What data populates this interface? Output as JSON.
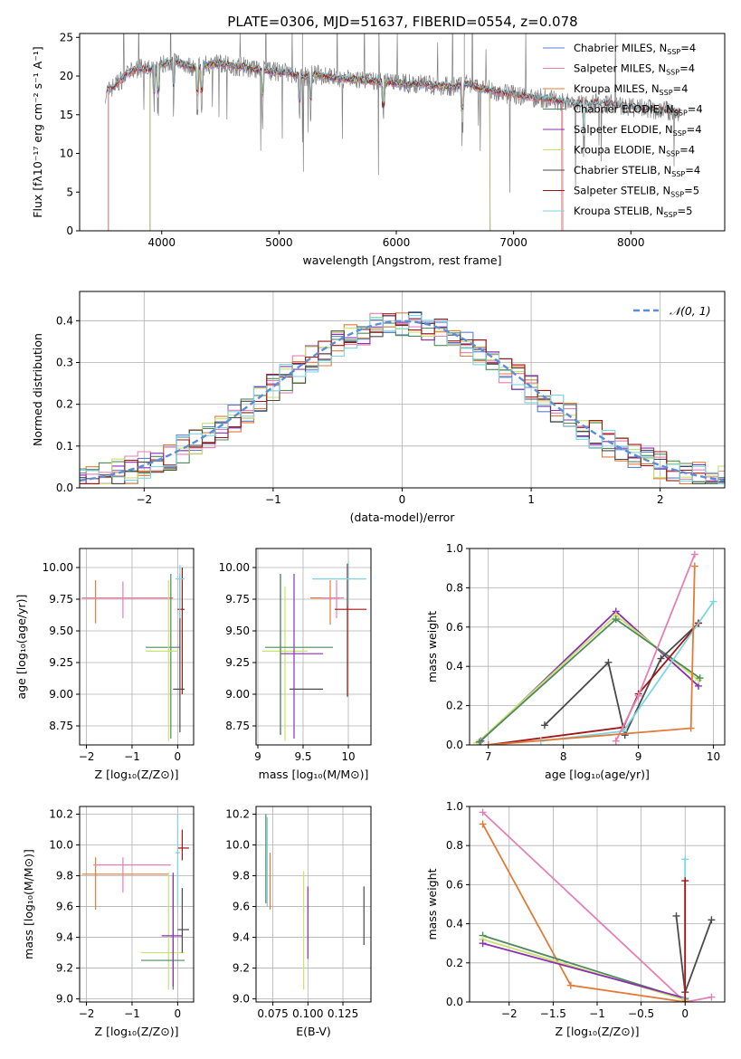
{
  "colors": {
    "Chabrier MILES": "#5b7fd3",
    "Salpeter MILES": "#e57fb5",
    "Kroupa MILES": "#e07b39",
    "Chabrier ELODIE": "#4f8a5e",
    "Salpeter ELODIE": "#8b2fb3",
    "Kroupa ELODIE": "#c9e26b",
    "Chabrier STELIB": "#4a4a4a",
    "Salpeter STELIB": "#a31515",
    "Kroupa STELIB": "#7ad6e0",
    "gaussian": "#5b8ed8"
  },
  "chart_data": [
    {
      "id": "spectrum",
      "type": "line",
      "title": "PLATE=0306, MJD=51637, FIBERID=0554, z=0.078",
      "xlabel": "wavelength [Angstrom, rest frame]",
      "ylabel": "Flux [fλ10⁻¹⁷ erg cm⁻² s⁻¹ A⁻¹]",
      "xlim": [
        3300,
        8800
      ],
      "ylim": [
        0,
        25.5
      ],
      "xticks": [
        4000,
        5000,
        6000,
        7000,
        8000
      ],
      "yticks": [
        0,
        5,
        10,
        15,
        20,
        25
      ],
      "legend_position": "top-right",
      "legend": [
        {
          "name": "Chabrier MILES, N",
          "sub": "SSP",
          "tail": "=4",
          "color_key": "Chabrier MILES"
        },
        {
          "name": "Salpeter MILES, N",
          "sub": "SSP",
          "tail": "=4",
          "color_key": "Salpeter MILES"
        },
        {
          "name": "Kroupa MILES, N",
          "sub": "SSP",
          "tail": "=4",
          "color_key": "Kroupa MILES"
        },
        {
          "name": "Chabrier ELODIE, N",
          "sub": "SSP",
          "tail": "=4",
          "color_key": "Chabrier ELODIE"
        },
        {
          "name": "Salpeter ELODIE, N",
          "sub": "SSP",
          "tail": "=4",
          "color_key": "Salpeter ELODIE"
        },
        {
          "name": "Kroupa ELODIE, N",
          "sub": "SSP",
          "tail": "=4",
          "color_key": "Kroupa ELODIE"
        },
        {
          "name": "Chabrier STELIB, N",
          "sub": "SSP",
          "tail": "=4",
          "color_key": "Chabrier STELIB"
        },
        {
          "name": "Salpeter STELIB, N",
          "sub": "SSP",
          "tail": "=5",
          "color_key": "Salpeter STELIB"
        },
        {
          "name": "Kroupa STELIB, N",
          "sub": "SSP",
          "tail": "=5",
          "color_key": "Kroupa STELIB"
        }
      ],
      "continuum": [
        [
          3500,
          17.5
        ],
        [
          3600,
          18.8
        ],
        [
          3700,
          20.2
        ],
        [
          3800,
          21.0
        ],
        [
          3900,
          20.8
        ],
        [
          4000,
          21.5
        ],
        [
          4100,
          22.0
        ],
        [
          4200,
          21.5
        ],
        [
          4300,
          21.0
        ],
        [
          4400,
          21.5
        ],
        [
          4500,
          21.6
        ],
        [
          4600,
          21.3
        ],
        [
          4700,
          21.2
        ],
        [
          4800,
          20.8
        ],
        [
          4900,
          20.7
        ],
        [
          5000,
          20.5
        ],
        [
          5100,
          20.4
        ],
        [
          5200,
          19.8
        ],
        [
          5300,
          20.2
        ],
        [
          5400,
          20.0
        ],
        [
          5500,
          19.7
        ],
        [
          5600,
          19.6
        ],
        [
          5700,
          19.5
        ],
        [
          5800,
          19.3
        ],
        [
          5900,
          19.2
        ],
        [
          6000,
          19.1
        ],
        [
          6100,
          19.0
        ],
        [
          6200,
          19.0
        ],
        [
          6300,
          18.8
        ],
        [
          6400,
          18.7
        ],
        [
          6500,
          18.6
        ],
        [
          6600,
          19.0
        ],
        [
          6700,
          18.5
        ],
        [
          6800,
          18.2
        ],
        [
          6900,
          17.8
        ],
        [
          7000,
          17.6
        ],
        [
          7100,
          17.4
        ],
        [
          7200,
          17.2
        ],
        [
          7300,
          17.0
        ],
        [
          7400,
          16.8
        ],
        [
          7500,
          16.5
        ],
        [
          7600,
          16.3
        ],
        [
          7700,
          16.5
        ],
        [
          7800,
          16.4
        ],
        [
          7900,
          16.2
        ],
        [
          8000,
          16.0
        ],
        [
          8100,
          15.8
        ],
        [
          8200,
          15.6
        ],
        [
          8300,
          15.5
        ],
        [
          8400,
          15.4
        ]
      ]
    },
    {
      "id": "residuals",
      "type": "step",
      "xlabel": "(data-model)/error",
      "ylabel": "Normed distribution",
      "xlim": [
        -2.5,
        2.5
      ],
      "ylim": [
        0,
        0.47
      ],
      "xticks": [
        -2,
        -1,
        0,
        1,
        2
      ],
      "yticks": [
        0.0,
        0.1,
        0.2,
        0.3,
        0.4
      ],
      "legend": {
        "label": "𝒩(0, 1)",
        "color_key": "gaussian",
        "position": "top-right"
      }
    },
    {
      "id": "age_vs_Z",
      "type": "errorbar",
      "xlabel": "Z [log₁₀(Z/Z⊙)]",
      "ylabel": "age  [log₁₀(age/yr)]",
      "xlim": [
        -2.15,
        0.35
      ],
      "ylim": [
        8.6,
        10.15
      ],
      "xticks": [
        -2,
        -1,
        0
      ],
      "yticks": [
        8.75,
        9.0,
        9.25,
        9.5,
        9.75,
        10.0
      ],
      "points": [
        {
          "color_key": "Kroupa MILES",
          "x": -1.8,
          "y": 9.76,
          "x0": -2.1,
          "x1": -0.1,
          "y0": 9.56,
          "y1": 9.9
        },
        {
          "color_key": "Salpeter MILES",
          "x": -1.2,
          "y": 9.76,
          "x0": -2.1,
          "x1": -0.15,
          "y0": 9.6,
          "y1": 9.89
        },
        {
          "color_key": "Chabrier ELODIE",
          "x": -0.15,
          "y": 9.37,
          "x0": -0.7,
          "x1": 0.05,
          "y0": 8.65,
          "y1": 9.95
        },
        {
          "color_key": "Kroupa ELODIE",
          "x": -0.2,
          "y": 9.34,
          "x0": -0.7,
          "x1": 0.0,
          "y0": 8.63,
          "y1": 9.9
        },
        {
          "color_key": "Chabrier STELIB",
          "x": 0.05,
          "y": 9.04,
          "x0": -0.1,
          "x1": 0.15,
          "y0": 8.7,
          "y1": 9.95
        },
        {
          "color_key": "Salpeter STELIB",
          "x": 0.1,
          "y": 9.67,
          "x0": 0.0,
          "x1": 0.15,
          "y0": 9.0,
          "y1": 10.0
        },
        {
          "color_key": "Kroupa STELIB",
          "x": 0.05,
          "y": 9.91,
          "x0": -0.05,
          "x1": 0.15,
          "y0": 9.6,
          "y1": 10.02
        }
      ]
    },
    {
      "id": "age_vs_mass",
      "type": "errorbar",
      "xlabel": "mass [log₁₀(M/M⊙)]",
      "xlim": [
        8.98,
        10.25
      ],
      "ylim": [
        8.6,
        10.15
      ],
      "xticks": [
        9.0,
        9.5,
        10.0
      ],
      "yticks": [
        8.75,
        9.0,
        9.25,
        9.5,
        9.75,
        10.0
      ],
      "points": [
        {
          "color_key": "Chabrier STELIB",
          "x": 9.25,
          "y": 9.04,
          "x0": 9.35,
          "x1": 9.72,
          "y0": 8.68,
          "y1": 9.95
        },
        {
          "color_key": "Kroupa ELODIE",
          "x": 9.3,
          "y": 9.34,
          "x0": 9.05,
          "x1": 9.55,
          "y0": 8.63,
          "y1": 9.85
        },
        {
          "color_key": "Salpeter ELODIE",
          "x": 9.4,
          "y": 9.32,
          "x0": 9.25,
          "x1": 9.72,
          "y0": 8.65,
          "y1": 9.95
        },
        {
          "color_key": "Chabrier ELODIE",
          "x": 9.25,
          "y": 9.37,
          "x0": 9.08,
          "x1": 9.83,
          "y0": 8.7,
          "y1": 9.95
        },
        {
          "color_key": "Kroupa MILES",
          "x": 9.8,
          "y": 9.76,
          "x0": 9.58,
          "x1": 9.9,
          "y0": 9.55,
          "y1": 9.9
        },
        {
          "color_key": "Salpeter MILES",
          "x": 9.87,
          "y": 9.76,
          "x0": 9.7,
          "x1": 9.95,
          "y0": 9.6,
          "y1": 9.9
        },
        {
          "color_key": "Salpeter STELIB",
          "x": 9.99,
          "y": 9.67,
          "x0": 9.85,
          "x1": 10.2,
          "y0": 8.98,
          "y1": 10.03
        },
        {
          "color_key": "Kroupa STELIB",
          "x": 10.0,
          "y": 9.91,
          "x0": 9.6,
          "x1": 10.2,
          "y0": 9.7,
          "y1": 10.05
        }
      ]
    },
    {
      "id": "mass_weight_vs_age",
      "type": "line",
      "xlabel": "age  [log₁₀(age/yr)]",
      "ylabel": "mass weight",
      "xlim": [
        6.75,
        10.15
      ],
      "ylim": [
        0,
        1.0
      ],
      "xticks": [
        7,
        8,
        9,
        10
      ],
      "yticks": [
        0.0,
        0.2,
        0.4,
        0.6,
        0.8,
        1.0
      ],
      "series": [
        {
          "color_key": "Salpeter ELODIE",
          "x": [
            6.9,
            8.7,
            9.8
          ],
          "y": [
            0.02,
            0.68,
            0.3
          ]
        },
        {
          "color_key": "Kroupa ELODIE",
          "x": [
            6.85,
            8.7,
            9.8
          ],
          "y": [
            0.01,
            0.66,
            0.33
          ]
        },
        {
          "color_key": "Chabrier ELODIE",
          "x": [
            6.88,
            8.7,
            9.82
          ],
          "y": [
            0.015,
            0.64,
            0.34
          ]
        },
        {
          "color_key": "Chabrier STELIB",
          "x": [
            7.75,
            8.6,
            8.82,
            9.3,
            9.8
          ],
          "y": [
            0.1,
            0.42,
            0.05,
            0.44,
            0.62
          ]
        },
        {
          "color_key": "Salpeter STELIB",
          "x": [
            7.0,
            8.8,
            9.0,
            9.8
          ],
          "y": [
            0.0,
            0.09,
            0.26,
            0.62
          ]
        },
        {
          "color_key": "Kroupa STELIB",
          "x": [
            7.7,
            8.8,
            10.0
          ],
          "y": [
            0.02,
            0.07,
            0.73
          ]
        },
        {
          "color_key": "Salpeter MILES",
          "x": [
            8.7,
            9.0,
            9.75
          ],
          "y": [
            0.02,
            0.25,
            0.97
          ]
        },
        {
          "color_key": "Kroupa MILES",
          "x": [
            7.0,
            9.7,
            9.75
          ],
          "y": [
            0.0,
            0.085,
            0.91
          ]
        }
      ]
    },
    {
      "id": "mass_vs_Z",
      "type": "errorbar",
      "xlabel": "Z [log₁₀(Z/Z⊙)]",
      "ylabel": "mass [log₁₀(M/M⊙)]",
      "xlim": [
        -2.15,
        0.35
      ],
      "ylim": [
        8.98,
        10.25
      ],
      "xticks": [
        -2,
        -1,
        0
      ],
      "yticks": [
        9.0,
        9.2,
        9.4,
        9.6,
        9.8,
        10.0,
        10.2
      ],
      "points": [
        {
          "color_key": "Kroupa MILES",
          "x": -1.8,
          "y": 9.81,
          "x0": -2.1,
          "x1": -0.2,
          "y0": 9.58,
          "y1": 9.92
        },
        {
          "color_key": "Salpeter MILES",
          "x": -1.2,
          "y": 9.87,
          "x0": -1.85,
          "x1": -0.15,
          "y0": 9.69,
          "y1": 9.92
        },
        {
          "color_key": "Kroupa ELODIE",
          "x": -0.2,
          "y": 9.3,
          "x0": -0.8,
          "x1": 0.15,
          "y0": 9.06,
          "y1": 9.82
        },
        {
          "color_key": "Chabrier ELODIE",
          "x": -0.1,
          "y": 9.25,
          "x0": -0.8,
          "x1": 0.15,
          "y0": 9.06,
          "y1": 9.8
        },
        {
          "color_key": "Salpeter ELODIE",
          "x": -0.1,
          "y": 9.41,
          "x0": -0.35,
          "x1": 0.1,
          "y0": 9.08,
          "y1": 9.82
        },
        {
          "color_key": "Chabrier STELIB",
          "x": 0.1,
          "y": 9.45,
          "x0": 0.0,
          "x1": 0.25,
          "y0": 9.3,
          "y1": 9.72
        },
        {
          "color_key": "Salpeter STELIB",
          "x": 0.1,
          "y": 9.98,
          "x0": 0.0,
          "x1": 0.25,
          "y0": 9.9,
          "y1": 10.1
        },
        {
          "color_key": "Kroupa STELIB",
          "x": 0.0,
          "y": 9.95,
          "x0": -0.05,
          "x1": 0.05,
          "y0": 9.6,
          "y1": 10.2
        }
      ]
    },
    {
      "id": "mass_vs_EBV",
      "type": "errorbar",
      "xlabel": "E(B-V)",
      "xlim": [
        0.063,
        0.145
      ],
      "ylim": [
        8.98,
        10.25
      ],
      "xticks": [
        0.075,
        0.1,
        0.125
      ],
      "xticklabels": [
        "0.075",
        "0.100",
        "0.125"
      ],
      "yticks": [
        9.0,
        9.2,
        9.4,
        9.6,
        9.8,
        10.0,
        10.2
      ],
      "points": [
        {
          "color_key": "Chabrier ELODIE",
          "x": 0.07,
          "y": 9.9,
          "y0": 9.62,
          "y1": 10.2
        },
        {
          "color_key": "Kroupa STELIB",
          "x": 0.071,
          "y": 9.88,
          "y0": 9.6,
          "y1": 10.18
        },
        {
          "color_key": "Kroupa MILES",
          "x": 0.073,
          "y": 9.75,
          "y0": 9.58,
          "y1": 9.95
        },
        {
          "color_key": "Kroupa ELODIE",
          "x": 0.097,
          "y": 9.45,
          "y0": 9.06,
          "y1": 9.83
        },
        {
          "color_key": "Salpeter ELODIE",
          "x": 0.1,
          "y": 9.5,
          "y0": 9.26,
          "y1": 9.73
        },
        {
          "color_key": "Chabrier STELIB",
          "x": 0.14,
          "y": 9.55,
          "y0": 9.35,
          "y1": 9.73
        }
      ]
    },
    {
      "id": "mass_weight_vs_Z",
      "type": "line",
      "xlabel": "Z [log₁₀(Z/Z⊙)]",
      "ylabel": "mass weight",
      "xlim": [
        -2.45,
        0.45
      ],
      "ylim": [
        0,
        1.0
      ],
      "xticks": [
        -2.0,
        -1.5,
        -1.0,
        -0.5,
        0.0
      ],
      "yticks": [
        0.0,
        0.2,
        0.4,
        0.6,
        0.8,
        1.0
      ],
      "series": [
        {
          "color_key": "Salpeter MILES",
          "x": [
            -2.3,
            0.0,
            0.3
          ],
          "y": [
            0.97,
            0.0,
            0.025
          ]
        },
        {
          "color_key": "Kroupa MILES",
          "x": [
            -2.3,
            -1.3,
            0.0
          ],
          "y": [
            0.91,
            0.085,
            0.0
          ]
        },
        {
          "color_key": "Chabrier ELODIE",
          "x": [
            -2.3,
            0.0
          ],
          "y": [
            0.34,
            0.015
          ]
        },
        {
          "color_key": "Kroupa ELODIE",
          "x": [
            -2.3,
            0.0
          ],
          "y": [
            0.32,
            0.01
          ]
        },
        {
          "color_key": "Salpeter ELODIE",
          "x": [
            -2.3,
            0.0
          ],
          "y": [
            0.3,
            0.02
          ]
        },
        {
          "color_key": "Chabrier STELIB",
          "x": [
            -0.1,
            0.0,
            0.3
          ],
          "y": [
            0.44,
            0.05,
            0.42
          ]
        },
        {
          "color_key": "Kroupa STELIB",
          "x": [
            0.0,
            0.0
          ],
          "y": [
            0.02,
            0.73
          ]
        },
        {
          "color_key": "Salpeter STELIB",
          "x": [
            0.0,
            0.0
          ],
          "y": [
            0.0,
            0.62
          ]
        }
      ]
    }
  ]
}
